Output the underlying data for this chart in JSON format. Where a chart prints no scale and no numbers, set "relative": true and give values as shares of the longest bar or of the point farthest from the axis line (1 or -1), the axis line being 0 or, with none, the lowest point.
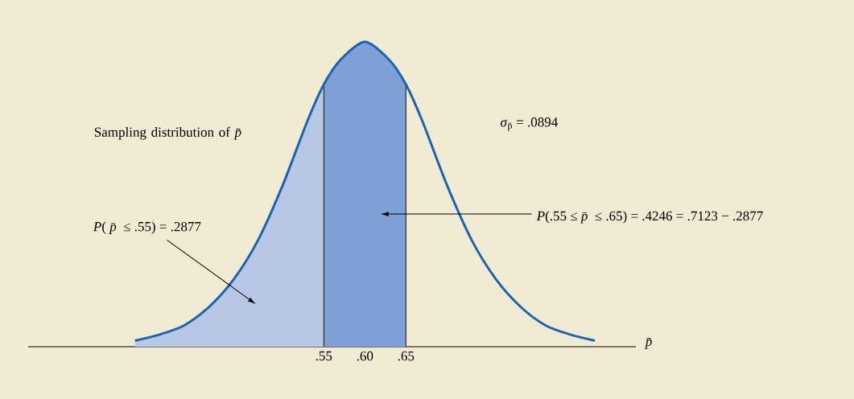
{
  "chart_data": {
    "type": "line",
    "relative": true,
    "x": [
      0.32,
      0.35,
      0.38,
      0.41,
      0.44,
      0.47,
      0.5,
      0.53,
      0.55,
      0.57,
      0.6,
      0.63,
      0.65,
      0.67,
      0.7,
      0.73,
      0.76,
      0.79,
      0.82,
      0.85,
      0.88
    ],
    "series": [
      {
        "color": "#1a64b0",
        "values": [
          0.02,
          0.04,
          0.07,
          0.13,
          0.22,
          0.35,
          0.53,
          0.74,
          0.86,
          0.94,
          1,
          0.94,
          0.86,
          0.74,
          0.53,
          0.35,
          0.22,
          0.13,
          0.07,
          0.04,
          0.02
        ]
      }
    ],
    "xlabel": "*p̄*",
    "xlim": [
      0.19,
      0.93
    ],
    "xticks": [
      {
        "value": 0.55,
        "label": ".55"
      },
      {
        "value": 0.6,
        "label": ".60"
      },
      {
        "value": 0.65,
        "label": ".65"
      }
    ],
    "bands": [
      {
        "axis": "x",
        "from": 0.32,
        "to": 0.55,
        "label": "*P*( *p̄* ≤ .55) = .2877",
        "color": "#b8c7e6"
      },
      {
        "axis": "x",
        "from": 0.55,
        "to": 0.65,
        "label": "*P*(.55 ≤ *p̄* ≤ .65) = .4246 = .7123 − .2877",
        "color": "#7fa0d6"
      }
    ],
    "ref_lines": [
      {
        "axis": "x",
        "value": 0.55,
        "color": "#000000"
      },
      {
        "axis": "x",
        "value": 0.65,
        "color": "#000000"
      }
    ],
    "annotations": [
      "Sampling distribution of *p̄*",
      "*σ*$_{p̄}$ = .0894"
    ]
  }
}
